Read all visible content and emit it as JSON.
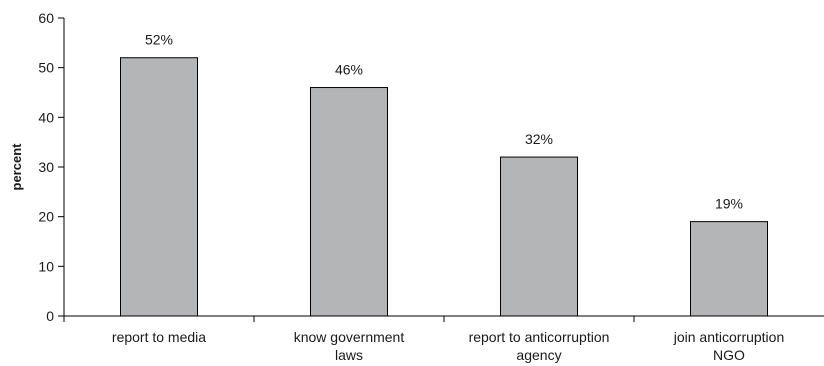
{
  "chart_data": {
    "type": "bar",
    "categories": [
      [
        "report to media"
      ],
      [
        "know government",
        "laws"
      ],
      [
        "report to anticorruption",
        "agency"
      ],
      [
        "join anticorruption",
        "NGO"
      ]
    ],
    "values": [
      52,
      46,
      32,
      19
    ],
    "data_labels": [
      "52%",
      "46%",
      "32%",
      "19%"
    ],
    "title": "",
    "xlabel": "",
    "ylabel": "percent",
    "ylim": [
      0,
      60
    ],
    "yticks": [
      0,
      10,
      20,
      30,
      40,
      50,
      60
    ],
    "grid": false,
    "legend": "none",
    "bar_color": "#b3b5b7",
    "bar_edge_color": "#000000"
  }
}
